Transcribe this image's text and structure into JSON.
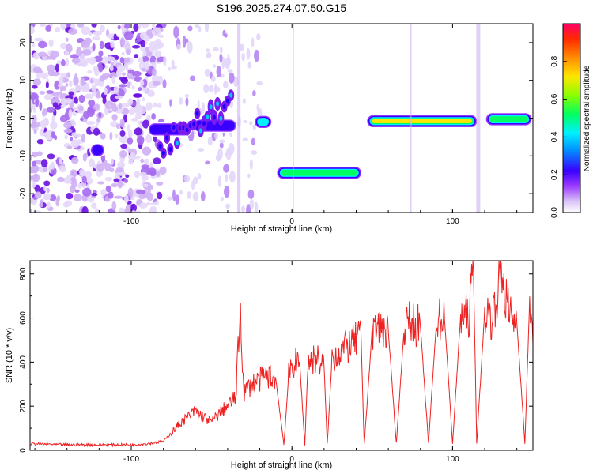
{
  "figure": {
    "title": "S196.2025.274.07.50.G15"
  },
  "chart_data": [
    {
      "type": "heatmap",
      "xlabel": "Height of straight line (km)",
      "ylabel": "Frequency (Hz)",
      "xlim": [
        -163,
        150
      ],
      "ylim": [
        -25,
        25
      ],
      "xticks": [
        -100,
        0,
        100
      ],
      "yticks": [
        -20,
        -10,
        0,
        10,
        20
      ],
      "colorbar": {
        "label": "Normalized spectral amplitude",
        "range": [
          0,
          1
        ],
        "ticks": [
          0.0,
          0.2,
          0.4,
          0.6,
          0.8
        ],
        "colors": [
          "#ffffff",
          "#c9a7f5",
          "#8f20ff",
          "#2a00ff",
          "#00d7ff",
          "#00ff48",
          "#c8ff00",
          "#ffd800",
          "#ff6a00",
          "#ff0050"
        ]
      },
      "ridges": [
        {
          "x": [
            -126,
            -116
          ],
          "freq": -8.5,
          "amplitude": 0.35
        },
        {
          "x": [
            -90,
            -62
          ],
          "freq": -3,
          "amplitude": 0.3
        },
        {
          "x": [
            -62,
            -34
          ],
          "freq": -2,
          "amplitude": 0.35
        },
        {
          "x": [
            -24,
            -12
          ],
          "freq": -1,
          "amplitude": 0.45
        },
        {
          "x": [
            -10,
            44
          ],
          "freq": -14.5,
          "amplitude": 0.65
        },
        {
          "x": [
            46,
            116
          ],
          "freq": -0.8,
          "amplitude": 0.8
        },
        {
          "x": [
            120,
            150
          ],
          "freq": -0.3,
          "amplitude": 0.6
        }
      ],
      "noise_region": {
        "x": [
          -163,
          -80
        ],
        "freq": [
          -25,
          25
        ]
      }
    },
    {
      "type": "line",
      "xlabel": "Height of straight line (km)",
      "ylabel": "SNR (10 * v/v)",
      "xlim": [
        -163,
        150
      ],
      "ylim": [
        0,
        860
      ],
      "xticks": [
        -100,
        0,
        100
      ],
      "yticks": [
        0,
        200,
        400,
        600,
        800
      ],
      "grid": false,
      "series": [
        {
          "color": "#ee2222",
          "x": [
            -163,
            -140,
            -120,
            -100,
            -90,
            -80,
            -75,
            -70,
            -65,
            -60,
            -55,
            -50,
            -45,
            -40,
            -35,
            -32,
            -30,
            -25,
            -20,
            -15,
            -10,
            -5,
            -2,
            0,
            2,
            5,
            8,
            10,
            15,
            20,
            22,
            25,
            30,
            35,
            40,
            43,
            45,
            50,
            55,
            60,
            65,
            70,
            75,
            80,
            85,
            90,
            95,
            100,
            105,
            110,
            113,
            115,
            120,
            125,
            130,
            135,
            140,
            145,
            148,
            150
          ],
          "y": [
            30,
            25,
            25,
            25,
            30,
            40,
            80,
            120,
            150,
            180,
            150,
            130,
            170,
            200,
            240,
            650,
            260,
            300,
            320,
            340,
            320,
            25,
            340,
            380,
            400,
            380,
            25,
            400,
            420,
            380,
            25,
            420,
            450,
            470,
            500,
            520,
            25,
            550,
            560,
            540,
            30,
            570,
            580,
            560,
            30,
            590,
            600,
            30,
            610,
            600,
            830,
            30,
            630,
            600,
            830,
            620,
            580,
            30,
            690,
            480
          ]
        }
      ]
    }
  ]
}
